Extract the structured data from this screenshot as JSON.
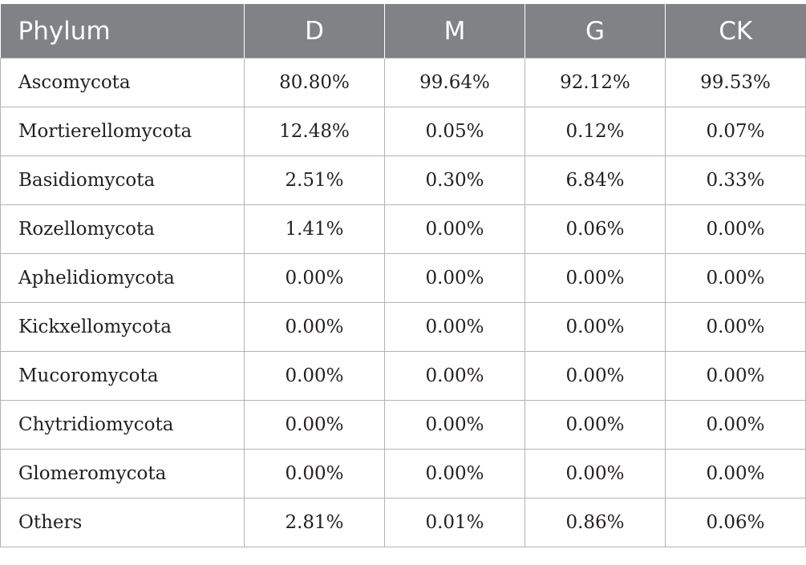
{
  "table": {
    "headers": [
      "Phylum",
      "D",
      "M",
      "G",
      "CK"
    ],
    "rows": [
      [
        "Ascomycota",
        "80.80%",
        "99.64%",
        "92.12%",
        "99.53%"
      ],
      [
        "Mortierellomycota",
        "12.48%",
        "0.05%",
        "0.12%",
        "0.07%"
      ],
      [
        "Basidiomycota",
        "2.51%",
        "0.30%",
        "6.84%",
        "0.33%"
      ],
      [
        "Rozellomycota",
        "1.41%",
        "0.00%",
        "0.06%",
        "0.00%"
      ],
      [
        "Aphelidiomycota",
        "0.00%",
        "0.00%",
        "0.00%",
        "0.00%"
      ],
      [
        "Kickxellomycota",
        "0.00%",
        "0.00%",
        "0.00%",
        "0.00%"
      ],
      [
        "Mucoromycota",
        "0.00%",
        "0.00%",
        "0.00%",
        "0.00%"
      ],
      [
        "Chytridiomycota",
        "0.00%",
        "0.00%",
        "0.00%",
        "0.00%"
      ],
      [
        "Glomeromycota",
        "0.00%",
        "0.00%",
        "0.00%",
        "0.00%"
      ],
      [
        "Others",
        "2.81%",
        "0.01%",
        "0.86%",
        "0.06%"
      ]
    ]
  },
  "colors": {
    "header_background": "#808285",
    "header_text": "#ffffff",
    "body_text": "#231f20",
    "grid_line": "#b3b3b3"
  }
}
